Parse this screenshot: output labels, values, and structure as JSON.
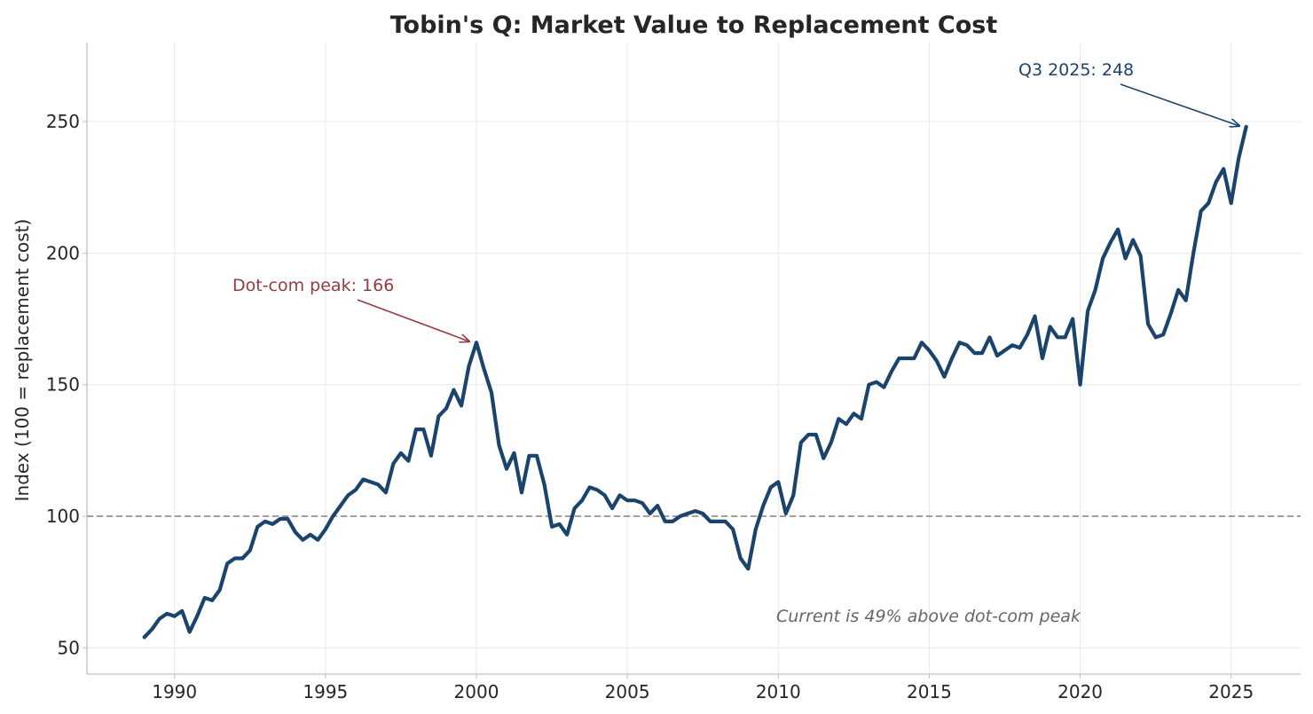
{
  "chart_data": {
    "type": "line",
    "title": "Tobin's Q: Market Value to Replacement Cost",
    "xlabel": "",
    "ylabel": "Index (100 = replacement cost)",
    "xlim": [
      1987.1,
      2027.3
    ],
    "ylim": [
      40,
      280
    ],
    "x_ticks": [
      1990,
      1995,
      2000,
      2005,
      2010,
      2015,
      2020,
      2025
    ],
    "y_ticks": [
      50,
      100,
      150,
      200,
      250
    ],
    "grid": true,
    "reference_line": {
      "y": 100,
      "style": "dashed",
      "color": "#808080"
    },
    "series": [
      {
        "color": "#1a446c",
        "x": [
          1989.0,
          1989.25,
          1989.5,
          1989.75,
          1990.0,
          1990.25,
          1990.5,
          1990.75,
          1991.0,
          1991.25,
          1991.5,
          1991.75,
          1992.0,
          1992.25,
          1992.5,
          1992.75,
          1993.0,
          1993.25,
          1993.5,
          1993.75,
          1994.0,
          1994.25,
          1994.5,
          1994.75,
          1995.0,
          1995.25,
          1995.5,
          1995.75,
          1996.0,
          1996.25,
          1996.5,
          1996.75,
          1997.0,
          1997.25,
          1997.5,
          1997.75,
          1998.0,
          1998.25,
          1998.5,
          1998.75,
          1999.0,
          1999.25,
          1999.5,
          1999.75,
          2000.0,
          2000.25,
          2000.5,
          2000.75,
          2001.0,
          2001.25,
          2001.5,
          2001.75,
          2002.0,
          2002.25,
          2002.5,
          2002.75,
          2003.0,
          2003.25,
          2003.5,
          2003.75,
          2004.0,
          2004.25,
          2004.5,
          2004.75,
          2005.0,
          2005.25,
          2005.5,
          2005.75,
          2006.0,
          2006.25,
          2006.5,
          2006.75,
          2007.0,
          2007.25,
          2007.5,
          2007.75,
          2008.0,
          2008.25,
          2008.5,
          2008.75,
          2009.0,
          2009.25,
          2009.5,
          2009.75,
          2010.0,
          2010.25,
          2010.5,
          2010.75,
          2011.0,
          2011.25,
          2011.5,
          2011.75,
          2012.0,
          2012.25,
          2012.5,
          2012.75,
          2013.0,
          2013.25,
          2013.5,
          2013.75,
          2014.0,
          2014.25,
          2014.5,
          2014.75,
          2015.0,
          2015.25,
          2015.5,
          2015.75,
          2016.0,
          2016.25,
          2016.5,
          2016.75,
          2017.0,
          2017.25,
          2017.5,
          2017.75,
          2018.0,
          2018.25,
          2018.5,
          2018.75,
          2019.0,
          2019.25,
          2019.5,
          2019.75,
          2020.0,
          2020.25,
          2020.5,
          2020.75,
          2021.0,
          2021.25,
          2021.5,
          2021.75,
          2022.0,
          2022.25,
          2022.5,
          2022.75,
          2023.0,
          2023.25,
          2023.5,
          2023.75,
          2024.0,
          2024.25,
          2024.5,
          2024.75,
          2025.0,
          2025.25,
          2025.5
        ],
        "values": [
          54,
          57,
          61,
          63,
          62,
          64,
          56,
          62,
          69,
          68,
          72,
          82,
          84,
          84,
          87,
          96,
          98,
          97,
          99,
          99,
          94,
          91,
          93,
          91,
          95,
          100,
          104,
          108,
          110,
          114,
          113,
          112,
          109,
          120,
          124,
          121,
          133,
          133,
          123,
          138,
          141,
          148,
          142,
          157,
          166,
          156,
          147,
          127,
          118,
          124,
          109,
          123,
          123,
          112,
          96,
          97,
          93,
          103,
          106,
          111,
          110,
          108,
          103,
          108,
          106,
          106,
          105,
          101,
          104,
          98,
          98,
          100,
          101,
          102,
          101,
          98,
          98,
          98,
          95,
          84,
          80,
          95,
          104,
          111,
          113,
          101,
          108,
          128,
          131,
          131,
          122,
          128,
          137,
          135,
          139,
          137,
          150,
          151,
          149,
          155,
          160,
          160,
          160,
          166,
          163,
          159,
          153,
          160,
          166,
          165,
          162,
          162,
          168,
          161,
          163,
          165,
          164,
          169,
          176,
          160,
          172,
          168,
          168,
          175,
          150,
          178,
          186,
          198,
          204,
          209,
          198,
          205,
          199,
          173,
          168,
          169,
          177,
          186,
          182,
          200,
          216,
          219,
          227,
          232,
          219,
          236,
          248
        ]
      }
    ],
    "annotations": [
      {
        "text": "Dot-com peak: 166",
        "x": 2000.0,
        "y": 166,
        "color": "#943c3f"
      },
      {
        "text": "Q3 2025: 248",
        "x": 2025.5,
        "y": 248,
        "color": "#1a446c"
      }
    ],
    "note": "Current is 49% above dot-com peak"
  }
}
